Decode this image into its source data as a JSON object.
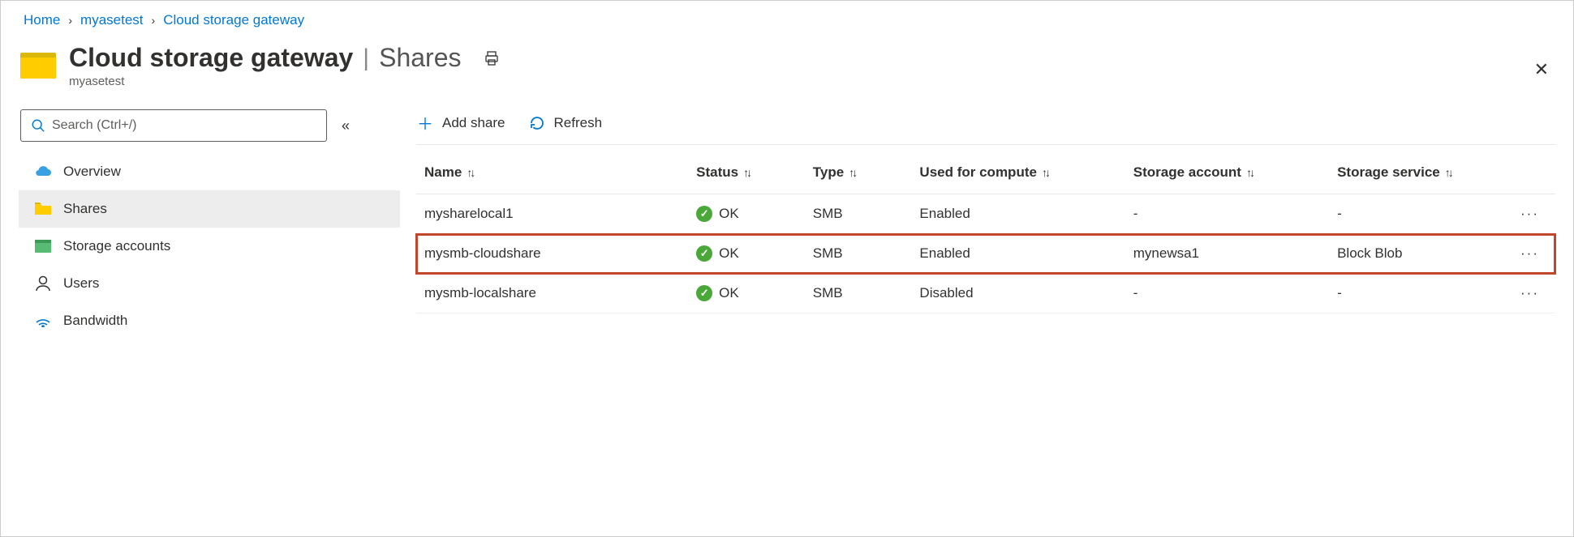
{
  "breadcrumb": {
    "home": "Home",
    "resource": "myasetest",
    "section": "Cloud storage gateway"
  },
  "header": {
    "title": "Cloud storage gateway",
    "page": "Shares",
    "subtitle": "myasetest"
  },
  "sidebar": {
    "search_placeholder": "Search (Ctrl+/)",
    "items": [
      {
        "label": "Overview"
      },
      {
        "label": "Shares"
      },
      {
        "label": "Storage accounts"
      },
      {
        "label": "Users"
      },
      {
        "label": "Bandwidth"
      }
    ],
    "active_index": 1
  },
  "toolbar": {
    "add_label": "Add share",
    "refresh_label": "Refresh"
  },
  "table": {
    "columns": {
      "name": "Name",
      "status": "Status",
      "type": "Type",
      "compute": "Used for compute",
      "account": "Storage account",
      "service": "Storage service"
    },
    "rows": [
      {
        "name": "mysharelocal1",
        "status": "OK",
        "type": "SMB",
        "compute": "Enabled",
        "account": "-",
        "service": "-",
        "highlight": false
      },
      {
        "name": "mysmb-cloudshare",
        "status": "OK",
        "type": "SMB",
        "compute": "Enabled",
        "account": "mynewsa1",
        "service": "Block Blob",
        "highlight": true
      },
      {
        "name": "mysmb-localshare",
        "status": "OK",
        "type": "SMB",
        "compute": "Disabled",
        "account": "-",
        "service": "-",
        "highlight": false
      }
    ]
  }
}
